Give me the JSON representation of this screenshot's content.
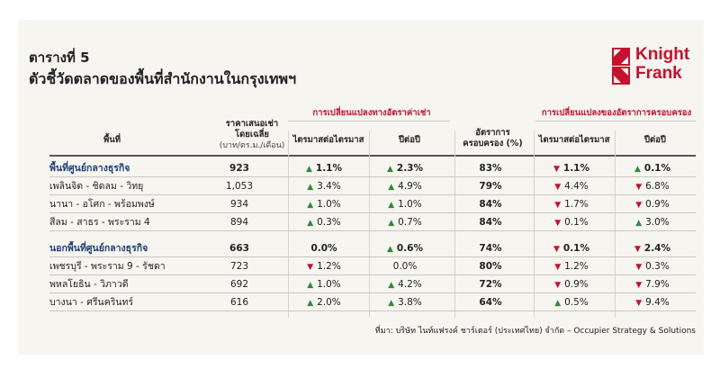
{
  "title_line1": "ตารางที่ 5",
  "title_line2": "ตัวชี้วัดตลาดของพื้นที่สำนักงานในกรุงเทพฯ",
  "logo_text": [
    "Knight",
    "Frank"
  ],
  "logo_color": "#c8102e",
  "group_headers": [
    "การเปลี่ยนแปลงทางอัตราค่าเช่า",
    "การเปลี่ยนแปลงของอัตราการครอบครอง"
  ],
  "columns": {
    "area": "พื้นที่",
    "rent_line1": "ราคาเสนอเช่า",
    "rent_line2": "โดยเฉลี่ย",
    "rent_unit": "(บาท/ตร.ม./เดือน)",
    "qoq": "ไตรมาสต่อไตรมาส",
    "yoy": "ปีต่อปี",
    "occ_line1": "อัตราการ",
    "occ_line2": "ครอบครอง (%)"
  },
  "rows": [
    {
      "name": "พื้นที่ศูนย์กลางธุรกิจ",
      "category": true,
      "rent": "923",
      "rent_qoq": {
        "v": "1.1%",
        "d": "up"
      },
      "rent_yoy": {
        "v": "2.3%",
        "d": "up"
      },
      "occ": "83%",
      "occ_qoq": {
        "v": "1.1%",
        "d": "down"
      },
      "occ_yoy": {
        "v": "0.1%",
        "d": "up"
      }
    },
    {
      "name": "เพลินจิต - ชิดลม - วิทยุ",
      "category": false,
      "rent": "1,053",
      "rent_qoq": {
        "v": "3.4%",
        "d": "up"
      },
      "rent_yoy": {
        "v": "4.9%",
        "d": "up"
      },
      "occ": "79%",
      "occ_qoq": {
        "v": "4.4%",
        "d": "down"
      },
      "occ_yoy": {
        "v": "6.8%",
        "d": "down"
      }
    },
    {
      "name": "นานา - อโศก - พร้อมพงษ์",
      "category": false,
      "rent": "934",
      "rent_qoq": {
        "v": "1.0%",
        "d": "up"
      },
      "rent_yoy": {
        "v": "1.0%",
        "d": "up"
      },
      "occ": "84%",
      "occ_qoq": {
        "v": "1.7%",
        "d": "down"
      },
      "occ_yoy": {
        "v": "0.9%",
        "d": "down"
      }
    },
    {
      "name": "สีลม - สาธร - พระราม 4",
      "category": false,
      "rent": "894",
      "rent_qoq": {
        "v": "0.3%",
        "d": "up"
      },
      "rent_yoy": {
        "v": "0.7%",
        "d": "up"
      },
      "occ": "84%",
      "occ_qoq": {
        "v": "0.1%",
        "d": "down"
      },
      "occ_yoy": {
        "v": "3.0%",
        "d": "up"
      }
    },
    {
      "name": "นอกพื้นที่ศูนย์กลางธุรกิจ",
      "category": true,
      "rent": "663",
      "rent_qoq": {
        "v": "0.0%",
        "d": "none"
      },
      "rent_yoy": {
        "v": "0.6%",
        "d": "up"
      },
      "occ": "74%",
      "occ_qoq": {
        "v": "0.1%",
        "d": "down"
      },
      "occ_yoy": {
        "v": "2.4%",
        "d": "down"
      }
    },
    {
      "name": "เพชรบุรี - พระราม 9 - รัชดา",
      "category": false,
      "rent": "723",
      "rent_qoq": {
        "v": "1.2%",
        "d": "down"
      },
      "rent_yoy": {
        "v": "0.0%",
        "d": "none"
      },
      "occ": "80%",
      "occ_qoq": {
        "v": "1.2%",
        "d": "down"
      },
      "occ_yoy": {
        "v": "0.3%",
        "d": "down"
      }
    },
    {
      "name": "พหลโยธิน - วิภาวดี",
      "category": false,
      "rent": "692",
      "rent_qoq": {
        "v": "1.0%",
        "d": "up"
      },
      "rent_yoy": {
        "v": "4.2%",
        "d": "up"
      },
      "occ": "72%",
      "occ_qoq": {
        "v": "0.9%",
        "d": "down"
      },
      "occ_yoy": {
        "v": "7.9%",
        "d": "down"
      }
    },
    {
      "name": "บางนา - ศรีนครินทร์",
      "category": false,
      "rent": "616",
      "rent_qoq": {
        "v": "2.0%",
        "d": "up"
      },
      "rent_yoy": {
        "v": "3.8%",
        "d": "up"
      },
      "occ": "64%",
      "occ_qoq": {
        "v": "0.5%",
        "d": "up"
      },
      "occ_yoy": {
        "v": "9.4%",
        "d": "down"
      }
    }
  ],
  "footer": "ที่มา: บริษัท ไนท์แฟรงค์ ชาร์เตอร์ (ประเทศไทย) จำกัด – Occupier Strategy & Solutions",
  "colors": {
    "up": "#2e8b3a",
    "down": "#c8102e",
    "category": "#1f3e78"
  }
}
